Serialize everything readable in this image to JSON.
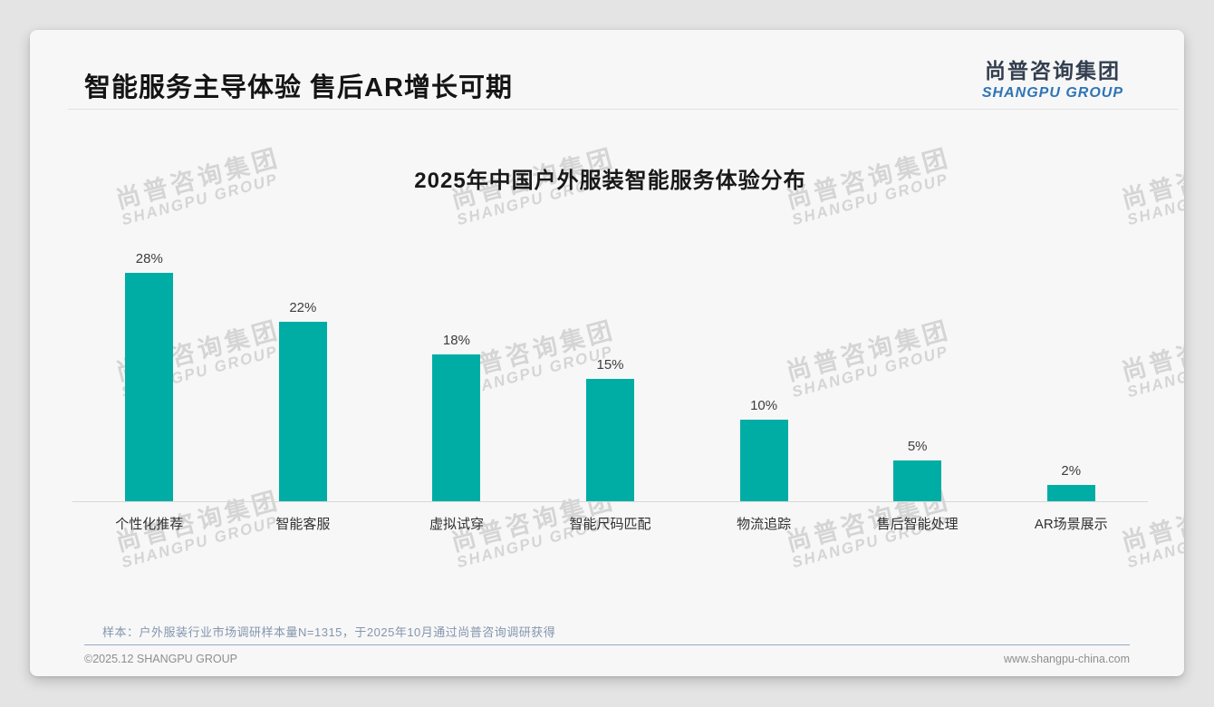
{
  "header": {
    "title": "智能服务主导体验 售后AR增长可期"
  },
  "logo": {
    "cn": "尚普咨询集团",
    "en": "SHANGPU GROUP"
  },
  "chart_data": {
    "type": "bar",
    "title": "2025年中国户外服装智能服务体验分布",
    "categories": [
      "个性化推荐",
      "智能客服",
      "虚拟试穿",
      "智能尺码匹配",
      "物流追踪",
      "售后智能处理",
      "AR场景展示"
    ],
    "values": [
      28,
      22,
      18,
      15,
      10,
      5,
      2
    ],
    "unit": "%",
    "value_labels": [
      "28%",
      "22%",
      "18%",
      "15%",
      "10%",
      "5%",
      "2%"
    ],
    "xlabel": "",
    "ylabel": "",
    "ylim": [
      0,
      30
    ],
    "grid": false,
    "legend": false,
    "bar_color": "#00ada5",
    "axis_line_color": "#d8d8d8"
  },
  "note": {
    "text": "样本：户外服装行业市场调研样本量N=1315，于2025年10月通过尚普咨询调研获得"
  },
  "footer": {
    "left": "©2025.12 SHANGPU GROUP",
    "right": "www.shangpu-china.com"
  },
  "watermark": {
    "line1": "尚普咨询集团",
    "line2": "SHANGPU GROUP"
  },
  "colors": {
    "bar": "#00ada5",
    "logo_cn": "#333f50",
    "logo_en": "#2e74b5",
    "note_text": "#8496ae",
    "card_bg": "#f7f7f7",
    "page_bg": "#e4e4e4"
  }
}
